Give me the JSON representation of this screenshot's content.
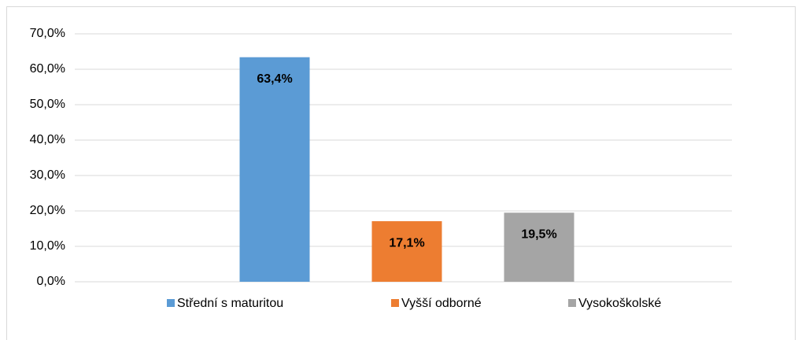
{
  "chart_data": {
    "type": "bar",
    "categories": [
      null
    ],
    "series": [
      {
        "name": "Střední s maturitou",
        "color": "#5b9bd5",
        "values": [
          63.4
        ],
        "value_labels": [
          "63,4%"
        ]
      },
      {
        "name": "Vyšší odborné",
        "color": "#ed7d31",
        "values": [
          17.1
        ],
        "value_labels": [
          "17,1%"
        ]
      },
      {
        "name": "Vysokoškolské",
        "color": "#a5a5a5",
        "values": [
          19.5
        ],
        "value_labels": [
          "19,5%"
        ]
      }
    ],
    "ylim": [
      0,
      70
    ],
    "yticks": [
      {
        "value": 0,
        "label": "0,0%"
      },
      {
        "value": 10,
        "label": "10,0%"
      },
      {
        "value": 20,
        "label": "20,0%"
      },
      {
        "value": 30,
        "label": "30,0%"
      },
      {
        "value": 40,
        "label": "40,0%"
      },
      {
        "value": 50,
        "label": "50,0%"
      },
      {
        "value": 60,
        "label": "60,0%"
      },
      {
        "value": 70,
        "label": "70,0%"
      }
    ],
    "grid": true,
    "legend": "bottom"
  }
}
